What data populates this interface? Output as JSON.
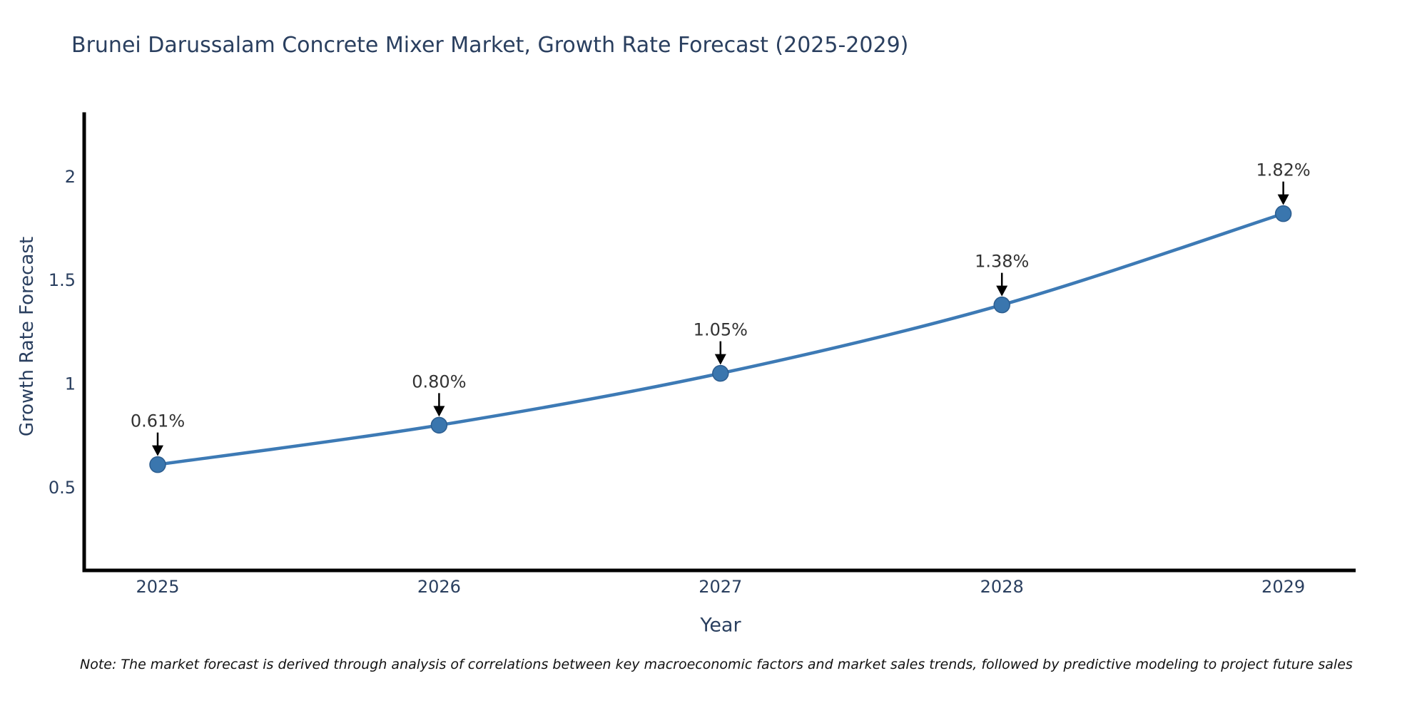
{
  "chart_data": {
    "type": "line",
    "title": "Brunei Darussalam Concrete Mixer Market, Growth Rate Forecast (2025-2029)",
    "xlabel": "Year",
    "ylabel": "Growth Rate Forecast",
    "categories": [
      "2025",
      "2026",
      "2027",
      "2028",
      "2029"
    ],
    "series": [
      {
        "name": "Growth Rate Forecast",
        "values": [
          0.61,
          0.8,
          1.05,
          1.38,
          1.82
        ],
        "point_labels": [
          "0.61%",
          "0.80%",
          "1.05%",
          "1.38%",
          "1.82%"
        ]
      }
    ],
    "yticks": [
      0.5,
      1.0,
      1.5,
      2.0
    ],
    "ytick_labels": [
      "0.5",
      "1",
      "1.5",
      "2"
    ],
    "ylim": [
      0.1,
      2.3
    ],
    "grid": false,
    "legend": "none",
    "colors": {
      "line": "#3d7ab5",
      "marker_fill": "#3a76ae",
      "marker_edge": "#2c5d8f",
      "axis": "#000000",
      "axis_text": "#2a3f5f",
      "annotation_text": "#333333",
      "arrow": "#000000"
    },
    "note": "Note: The market forecast is derived through analysis of correlations between key macroeconomic factors and market sales trends, followed by predictive modeling to project future sales"
  }
}
